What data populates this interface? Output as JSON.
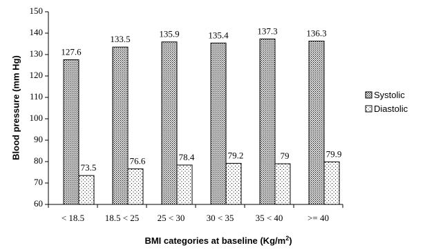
{
  "chart_data": {
    "type": "bar",
    "categories": [
      "< 18.5",
      "18.5 < 25",
      "25 < 30",
      "30 < 35",
      "35 < 40",
      ">= 40"
    ],
    "series": [
      {
        "name": "Systolic",
        "values": [
          127.6,
          133.5,
          135.9,
          135.4,
          137.3,
          136.3
        ],
        "labels": [
          "127.6",
          "133.5",
          "135.9",
          "135.4",
          "137.3",
          "136.3"
        ]
      },
      {
        "name": "Diastolic",
        "values": [
          73.5,
          76.6,
          78.4,
          79.2,
          79,
          79.9
        ],
        "labels": [
          "73.5",
          "76.6",
          "78.4",
          "79.2",
          "79",
          "79.9"
        ]
      }
    ],
    "ylabel": "Blood pressure (mm Hg)",
    "xlabel_main": "BMI categories at baseline (Kg/m",
    "xlabel_sup": "2",
    "xlabel_close": ")",
    "ylim": [
      60,
      150
    ],
    "yticks": [
      "60",
      "70",
      "80",
      "90",
      "100",
      "110",
      "120",
      "130",
      "140",
      "150"
    ],
    "grid": false,
    "legend_position": "right",
    "colors": {
      "bar_fill": "#ffffff",
      "bar_stroke": "#000000",
      "pattern_dot": "#000000"
    }
  }
}
